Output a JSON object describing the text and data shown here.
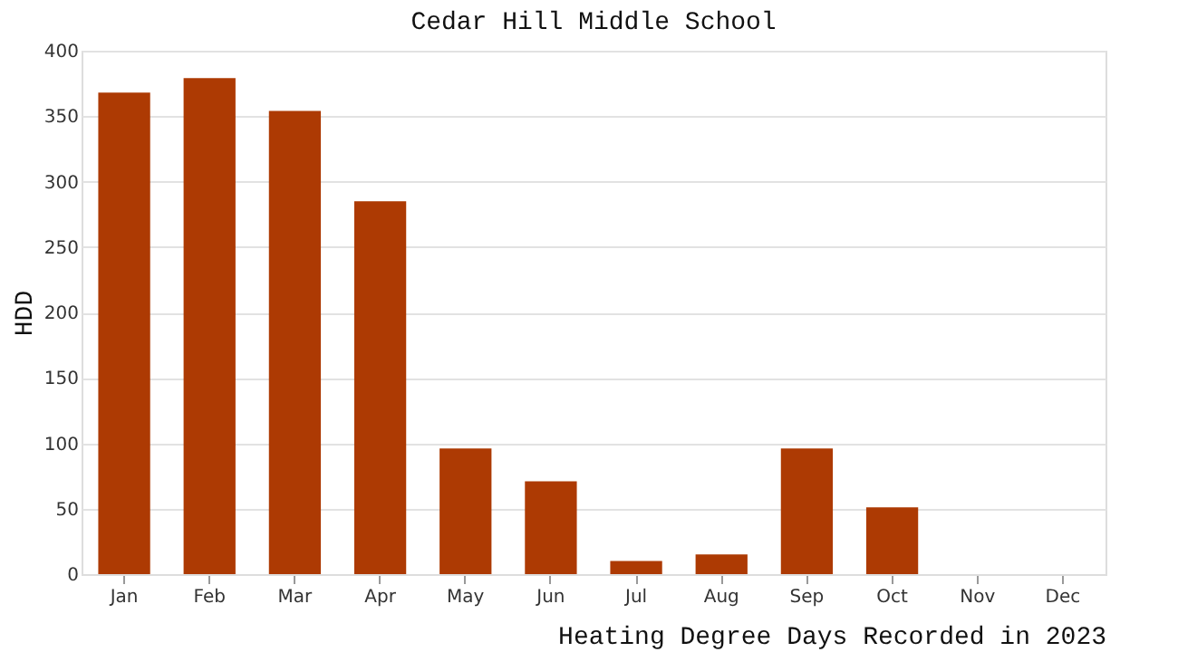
{
  "chart_data": {
    "type": "bar",
    "title": "Cedar Hill Middle School",
    "xlabel": "Heating Degree Days Recorded in 2023",
    "ylabel": "HDD",
    "categories": [
      "Jan",
      "Feb",
      "Mar",
      "Apr",
      "May",
      "Jun",
      "Jul",
      "Aug",
      "Sep",
      "Oct",
      "Nov",
      "Dec"
    ],
    "values": [
      368,
      379,
      354,
      285,
      96,
      71,
      10,
      15,
      96,
      51,
      0,
      0
    ],
    "color": "#ad3a03",
    "ylim": [
      0,
      400
    ],
    "yticks": [
      0,
      50,
      100,
      150,
      200,
      250,
      300,
      350,
      400
    ],
    "grid": "y"
  }
}
